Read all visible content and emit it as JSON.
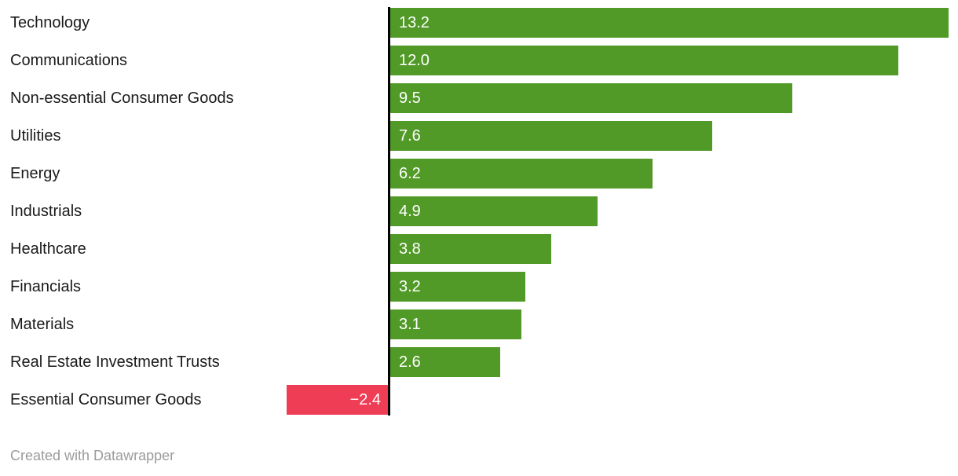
{
  "chart_data": {
    "type": "bar",
    "orientation": "horizontal",
    "categories": [
      "Technology",
      "Communications",
      "Non-essential Consumer Goods",
      "Utilities",
      "Energy",
      "Industrials",
      "Healthcare",
      "Financials",
      "Materials",
      "Real Estate Investment Trusts",
      "Essential Consumer Goods"
    ],
    "values": [
      13.2,
      12.0,
      9.5,
      7.6,
      6.2,
      4.9,
      3.8,
      3.2,
      3.1,
      2.6,
      -2.4
    ],
    "value_labels": [
      "13.2",
      "12.0",
      "9.5",
      "7.6",
      "6.2",
      "4.9",
      "3.8",
      "3.2",
      "3.1",
      "2.6",
      "−2.4"
    ],
    "title": "",
    "xlabel": "",
    "ylabel": "",
    "xlim": [
      -2.4,
      13.2
    ],
    "grid": false,
    "legend": false,
    "positive_color": "#529a28",
    "negative_color": "#ee3d55",
    "axis_color": "#000000",
    "label_color": "#1a1a1a",
    "value_text_color": "#ffffff"
  },
  "footer": {
    "credit": "Created with Datawrapper"
  }
}
